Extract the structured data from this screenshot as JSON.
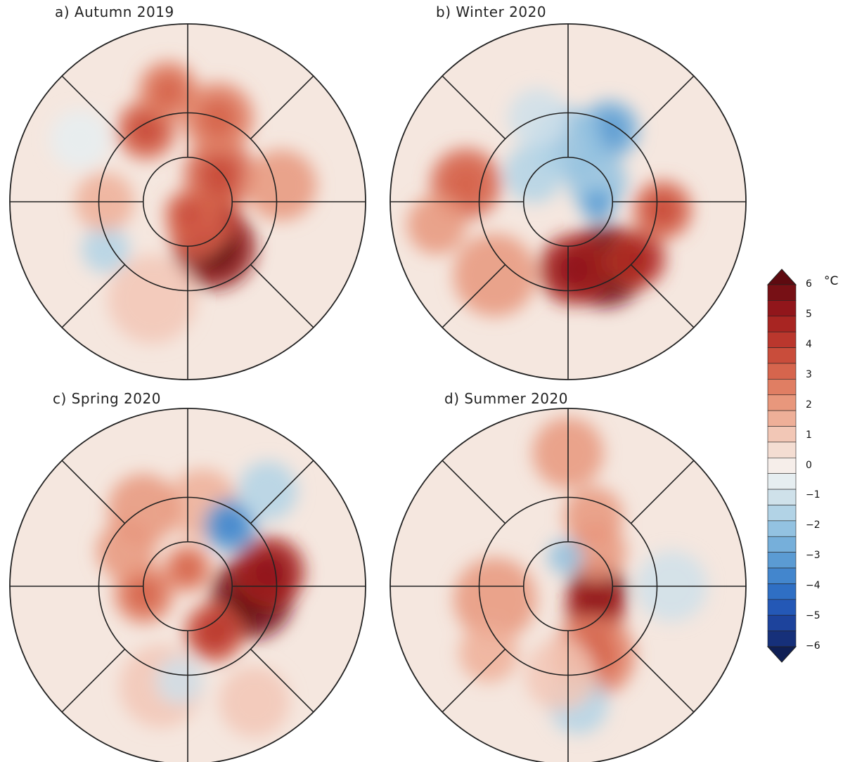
{
  "figure": {
    "panels": [
      {
        "id": "a",
        "title": "a) Autumn 2019",
        "field": [
          {
            "lon": 150,
            "lat": 72,
            "t": 5.0,
            "s": 14
          },
          {
            "lon": 120,
            "lat": 80,
            "t": 4.0,
            "s": 9
          },
          {
            "lon": 160,
            "lat": 80,
            "t": 3.2,
            "s": 10
          },
          {
            "lon": 175,
            "lat": 86,
            "t": 3.0,
            "s": 8
          },
          {
            "lon": 50,
            "lat": 76,
            "t": 3.0,
            "s": 12
          },
          {
            "lon": 20,
            "lat": 60,
            "t": 2.5,
            "s": 12
          },
          {
            "lon": -30,
            "lat": 62,
            "t": 3.0,
            "s": 10
          },
          {
            "lon": -10,
            "lat": 52,
            "t": 2.5,
            "s": 10
          },
          {
            "lon": -120,
            "lat": 58,
            "t": -1.5,
            "s": 8
          },
          {
            "lon": -90,
            "lat": 62,
            "t": 1.5,
            "s": 10
          },
          {
            "lon": 80,
            "lat": 58,
            "t": 2.0,
            "s": 12
          },
          {
            "lon": -160,
            "lat": 55,
            "t": 1.0,
            "s": 15
          },
          {
            "lon": -60,
            "lat": 48,
            "t": -0.6,
            "s": 10
          }
        ]
      },
      {
        "id": "b",
        "title": "b) Winter 2020",
        "field": [
          {
            "lon": 150,
            "lat": 65,
            "t": 5.5,
            "s": 14
          },
          {
            "lon": 175,
            "lat": 67,
            "t": 4.5,
            "s": 12
          },
          {
            "lon": 130,
            "lat": 60,
            "t": 4.0,
            "s": 10
          },
          {
            "lon": 95,
            "lat": 58,
            "t": 3.0,
            "s": 10
          },
          {
            "lon": -135,
            "lat": 55,
            "t": 2.0,
            "s": 14
          },
          {
            "lon": 30,
            "lat": 62,
            "t": -2.5,
            "s": 10
          },
          {
            "lon": 55,
            "lat": 78,
            "t": -2.0,
            "s": 10
          },
          {
            "lon": 0,
            "lat": 70,
            "t": -2.0,
            "s": 12
          },
          {
            "lon": -50,
            "lat": 75,
            "t": -1.5,
            "s": 10
          },
          {
            "lon": -80,
            "lat": 55,
            "t": 2.8,
            "s": 12
          },
          {
            "lon": -100,
            "lat": 45,
            "t": 2.0,
            "s": 10
          },
          {
            "lon": 95,
            "lat": 80,
            "t": -2.5,
            "s": 6
          },
          {
            "lon": -20,
            "lat": 60,
            "t": -1.0,
            "s": 10
          }
        ]
      },
      {
        "id": "c",
        "title": "c) Spring 2020",
        "field": [
          {
            "lon": 100,
            "lat": 68,
            "t": 5.5,
            "s": 14
          },
          {
            "lon": 80,
            "lat": 62,
            "t": 4.5,
            "s": 12
          },
          {
            "lon": 150,
            "lat": 72,
            "t": 3.5,
            "s": 10
          },
          {
            "lon": 0,
            "lat": 84,
            "t": 2.5,
            "s": 8
          },
          {
            "lon": -100,
            "lat": 75,
            "t": 2.5,
            "s": 10
          },
          {
            "lon": -60,
            "lat": 66,
            "t": 2.0,
            "s": 10
          },
          {
            "lon": 10,
            "lat": 62,
            "t": 1.5,
            "s": 12
          },
          {
            "lon": -30,
            "lat": 60,
            "t": 2.0,
            "s": 12
          },
          {
            "lon": -165,
            "lat": 55,
            "t": 1.2,
            "s": 14
          },
          {
            "lon": 150,
            "lat": 45,
            "t": 1.0,
            "s": 12
          },
          {
            "lon": 35,
            "lat": 65,
            "t": -3.0,
            "s": 9
          },
          {
            "lon": 40,
            "lat": 48,
            "t": -1.5,
            "s": 10
          },
          {
            "lon": -175,
            "lat": 58,
            "t": -0.8,
            "s": 8
          }
        ]
      },
      {
        "id": "d",
        "title": "d) Summer 2020",
        "field": [
          {
            "lon": 100,
            "lat": 80,
            "t": 5.5,
            "s": 10
          },
          {
            "lon": 130,
            "lat": 78,
            "t": 4.5,
            "s": 10
          },
          {
            "lon": 160,
            "lat": 65,
            "t": 2.5,
            "s": 14
          },
          {
            "lon": -100,
            "lat": 65,
            "t": 1.8,
            "s": 14
          },
          {
            "lon": 0,
            "lat": 45,
            "t": 2.0,
            "s": 12
          },
          {
            "lon": 20,
            "lat": 65,
            "t": 2.0,
            "s": 10
          },
          {
            "lon": 40,
            "lat": 75,
            "t": 2.0,
            "s": 10
          },
          {
            "lon": 175,
            "lat": 50,
            "t": -1.5,
            "s": 10
          },
          {
            "lon": -175,
            "lat": 60,
            "t": 1.2,
            "s": 12
          },
          {
            "lon": 90,
            "lat": 55,
            "t": -1.0,
            "s": 12
          },
          {
            "lon": -130,
            "lat": 55,
            "t": 1.5,
            "s": 10
          },
          {
            "lon": -5,
            "lat": 80,
            "t": -2.0,
            "s": 6
          }
        ]
      }
    ],
    "colorbar": {
      "unit": "°C",
      "ticks": [
        "6",
        "5",
        "4",
        "3",
        "2",
        "1",
        "0",
        "−1",
        "−2",
        "−3",
        "−4",
        "−5",
        "−6"
      ],
      "min": -6,
      "max": 6,
      "step": 0.5,
      "palette": [
        "#0f1f55",
        "#16307a",
        "#1d439c",
        "#2458b6",
        "#2f6fc4",
        "#4386cd",
        "#5b9bd3",
        "#76afda",
        "#93c2e1",
        "#b2d3e6",
        "#cfe1ea",
        "#e6eef1",
        "#f6eeea",
        "#f4ddd2",
        "#f2c7b6",
        "#eeaf98",
        "#e8977c",
        "#e07e63",
        "#d6654d",
        "#c94d3b",
        "#ba372d",
        "#a82522",
        "#91161b",
        "#771015",
        "#5e0a10"
      ]
    }
  }
}
